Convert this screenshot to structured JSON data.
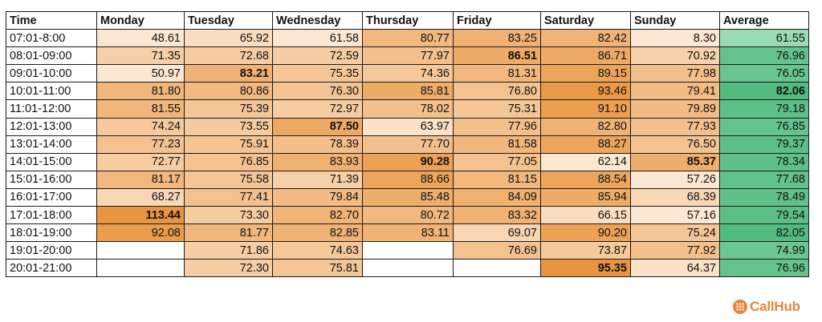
{
  "chart_data": {
    "type": "heatmap",
    "columns": [
      "Time",
      "Monday",
      "Tuesday",
      "Wednesday",
      "Thursday",
      "Friday",
      "Saturday",
      "Sunday",
      "Average"
    ],
    "rows": [
      {
        "time": "07:01-8:00",
        "values": [
          48.61,
          65.92,
          61.58,
          80.77,
          83.25,
          82.42,
          8.3,
          61.55
        ]
      },
      {
        "time": "08:01-09:00",
        "values": [
          71.35,
          72.68,
          72.59,
          77.97,
          86.51,
          86.71,
          70.92,
          76.96
        ]
      },
      {
        "time": "09:01-10:00",
        "values": [
          50.97,
          83.21,
          75.35,
          74.36,
          81.31,
          89.15,
          77.98,
          76.05
        ]
      },
      {
        "time": "10:01-11:00",
        "values": [
          81.8,
          80.86,
          76.3,
          85.81,
          76.8,
          93.46,
          79.41,
          82.06
        ]
      },
      {
        "time": "11:01-12:00",
        "values": [
          81.55,
          75.39,
          72.97,
          78.02,
          75.31,
          91.1,
          79.89,
          79.18
        ]
      },
      {
        "time": "12:01-13:00",
        "values": [
          74.24,
          73.55,
          87.5,
          63.97,
          77.96,
          82.8,
          77.93,
          76.85
        ]
      },
      {
        "time": "13:01-14:00",
        "values": [
          77.23,
          75.91,
          78.39,
          77.7,
          81.58,
          88.27,
          76.5,
          79.37
        ]
      },
      {
        "time": "14:01-15:00",
        "values": [
          72.77,
          76.85,
          83.93,
          90.28,
          77.05,
          62.14,
          85.37,
          78.34
        ]
      },
      {
        "time": "15:01-16:00",
        "values": [
          81.17,
          75.58,
          71.39,
          88.66,
          81.15,
          88.54,
          57.26,
          77.68
        ]
      },
      {
        "time": "16:01-17:00",
        "values": [
          68.27,
          77.41,
          79.84,
          85.48,
          84.09,
          85.94,
          68.39,
          78.49
        ]
      },
      {
        "time": "17:01-18:00",
        "values": [
          113.44,
          73.3,
          82.7,
          80.72,
          83.32,
          66.15,
          57.16,
          79.54
        ]
      },
      {
        "time": "18:01-19:00",
        "values": [
          92.08,
          81.77,
          82.85,
          83.11,
          69.07,
          90.2,
          75.24,
          82.05
        ]
      },
      {
        "time": "19:01-20:00",
        "values": [
          null,
          71.86,
          74.63,
          null,
          76.69,
          73.87,
          77.92,
          74.99
        ]
      },
      {
        "time": "20:01-21:00",
        "values": [
          null,
          72.3,
          75.81,
          null,
          null,
          95.35,
          64.37,
          76.96
        ]
      }
    ],
    "bold_cells": [
      [
        10,
        0
      ],
      [
        2,
        1
      ],
      [
        5,
        2
      ],
      [
        7,
        3
      ],
      [
        1,
        4
      ],
      [
        13,
        5
      ],
      [
        7,
        6
      ],
      [
        3,
        7
      ]
    ],
    "colors": {
      "day_scale": [
        "#fce7d2",
        "#e99540"
      ],
      "average_scale": [
        "#9bdcb5",
        "#4fba7d"
      ],
      "grid": "#1a1a1a"
    }
  },
  "logo": {
    "text": "CallHub",
    "color": "#e8833a"
  }
}
